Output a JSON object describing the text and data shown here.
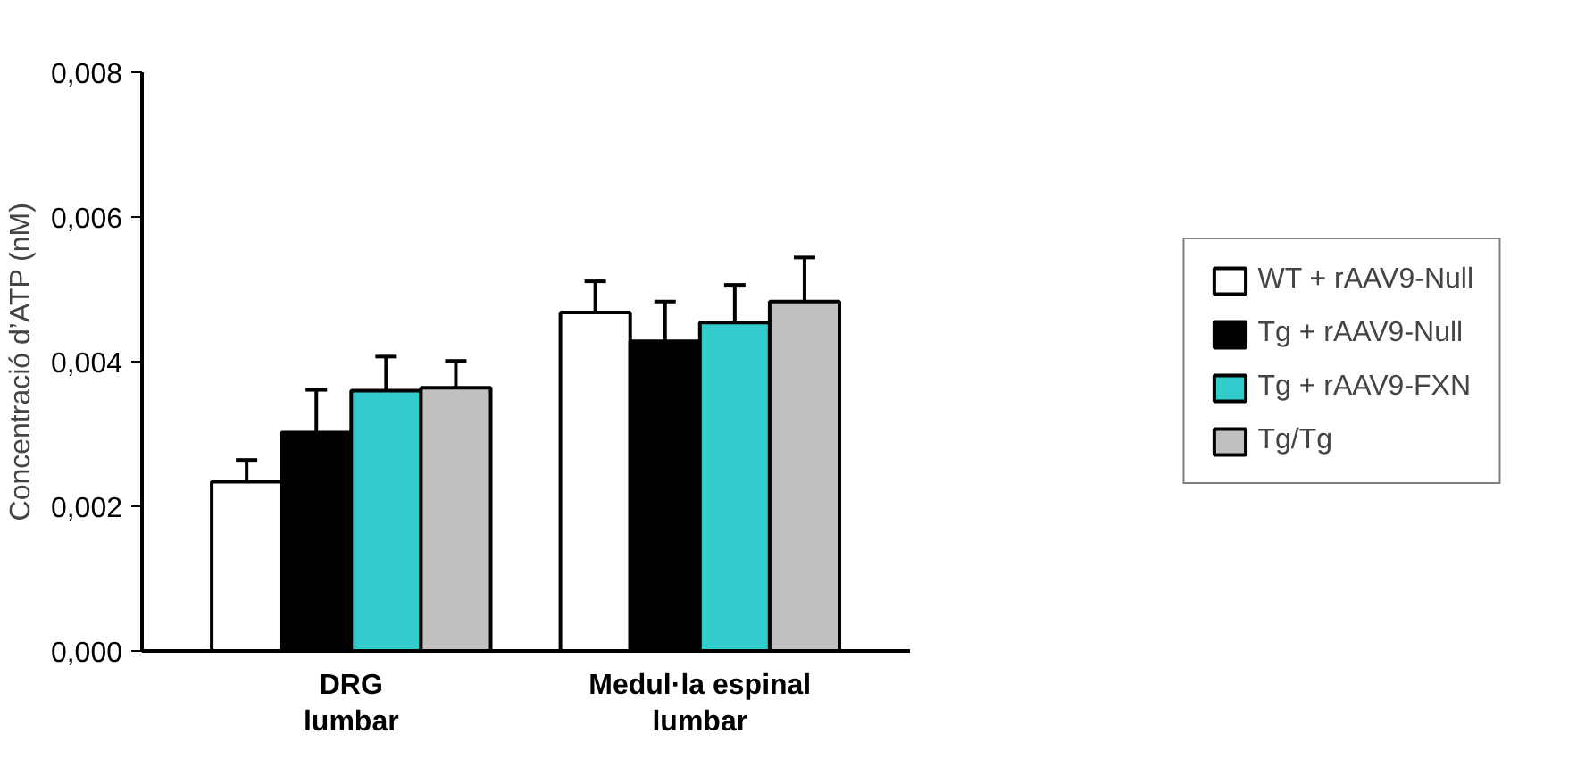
{
  "chart_data": {
    "type": "bar",
    "ylabel": "Concentració d’ATP (nM)",
    "categories": [
      "DRG\nlumbar",
      "Medul·la espinal\nlumbar"
    ],
    "series": [
      {
        "name": "WT + rAAV9-Null",
        "color": "#ffffff",
        "values": [
          0.00234,
          0.00468
        ],
        "errors": [
          [
            0.00234,
            0.00264
          ],
          [
            0.00468,
            0.00511
          ]
        ]
      },
      {
        "name": "Tg + rAAV9-Null",
        "color": "#000000",
        "values": [
          0.00302,
          0.00428
        ],
        "errors": [
          [
            0.00302,
            0.00361
          ],
          [
            0.00428,
            0.00483
          ]
        ]
      },
      {
        "name": "Tg + rAAV9-FXN",
        "color": "#33cccc",
        "values": [
          0.0036,
          0.00454
        ],
        "errors": [
          [
            0.0036,
            0.00407
          ],
          [
            0.00454,
            0.00506
          ]
        ]
      },
      {
        "name": "Tg/Tg",
        "color": "#c0c0c0",
        "values": [
          0.00364,
          0.00483
        ],
        "errors": [
          [
            0.00364,
            0.00401
          ],
          [
            0.00483,
            0.00544
          ]
        ]
      }
    ],
    "ylim": [
      0,
      0.008
    ],
    "yticks": [
      {
        "value": 0,
        "label": "0,000"
      },
      {
        "value": 0.002,
        "label": "0,002"
      },
      {
        "value": 0.004,
        "label": "0,004"
      },
      {
        "value": 0.006,
        "label": "0,006"
      },
      {
        "value": 0.008,
        "label": "0,008"
      }
    ],
    "grid": false,
    "legend": "right"
  }
}
